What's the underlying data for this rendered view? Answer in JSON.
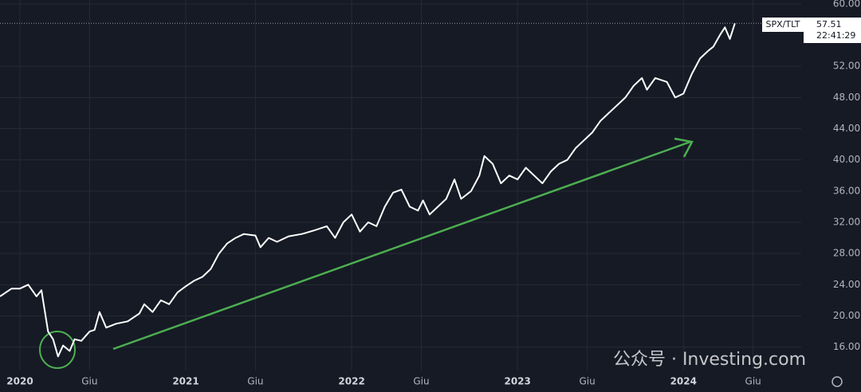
{
  "chart_data": {
    "type": "line",
    "symbol": "SPX/TLT",
    "last_price": 57.51,
    "time": "22:41:29",
    "watermark": "公众号 · Investing.com",
    "grid": true,
    "background": "#161a25",
    "xlim": [
      2019.88,
      2024.71
    ],
    "ylim": [
      13.0,
      60.5
    ],
    "xticks": [
      {
        "value": 2020,
        "label": "2020"
      },
      {
        "value": 2020.42,
        "label": "Giu"
      },
      {
        "value": 2021,
        "label": "2021"
      },
      {
        "value": 2021.42,
        "label": "Giu"
      },
      {
        "value": 2022,
        "label": "2022"
      },
      {
        "value": 2022.42,
        "label": "Giu"
      },
      {
        "value": 2023,
        "label": "2023"
      },
      {
        "value": 2023.42,
        "label": "Giu"
      },
      {
        "value": 2024,
        "label": "2024"
      },
      {
        "value": 2024.42,
        "label": "Giu"
      }
    ],
    "yticks": [
      {
        "value": 16,
        "label": "16.00"
      },
      {
        "value": 20,
        "label": "20.00"
      },
      {
        "value": 24,
        "label": "24.00"
      },
      {
        "value": 28,
        "label": "28.00"
      },
      {
        "value": 32,
        "label": "32.00"
      },
      {
        "value": 36,
        "label": "36.00"
      },
      {
        "value": 40,
        "label": "40.00"
      },
      {
        "value": 44,
        "label": "44.00"
      },
      {
        "value": 48,
        "label": "48.00"
      },
      {
        "value": 52,
        "label": "52.00"
      },
      {
        "value": 60,
        "label": "60.00"
      }
    ],
    "series": [
      {
        "name": "SPX/TLT",
        "color": "#ffffff",
        "x": [
          2019.88,
          2019.95,
          2020.0,
          2020.05,
          2020.1,
          2020.13,
          2020.17,
          2020.2,
          2020.23,
          2020.26,
          2020.3,
          2020.33,
          2020.37,
          2020.42,
          2020.45,
          2020.48,
          2020.52,
          2020.58,
          2020.65,
          2020.72,
          2020.75,
          2020.8,
          2020.85,
          2020.9,
          2020.95,
          2021.0,
          2021.05,
          2021.1,
          2021.15,
          2021.2,
          2021.25,
          2021.3,
          2021.35,
          2021.42,
          2021.45,
          2021.5,
          2021.55,
          2021.62,
          2021.7,
          2021.78,
          2021.85,
          2021.9,
          2021.95,
          2022.0,
          2022.05,
          2022.1,
          2022.15,
          2022.2,
          2022.25,
          2022.3,
          2022.35,
          2022.4,
          2022.43,
          2022.47,
          2022.52,
          2022.57,
          2022.62,
          2022.66,
          2022.72,
          2022.77,
          2022.8,
          2022.85,
          2022.9,
          2022.95,
          2023.0,
          2023.05,
          2023.1,
          2023.15,
          2023.2,
          2023.25,
          2023.3,
          2023.35,
          2023.4,
          2023.45,
          2023.5,
          2023.55,
          2023.6,
          2023.65,
          2023.7,
          2023.75,
          2023.78,
          2023.83,
          2023.9,
          2023.95,
          2024.0,
          2024.05,
          2024.1,
          2024.15,
          2024.18,
          2024.22,
          2024.25,
          2024.28,
          2024.31
        ],
        "values": [
          22.5,
          23.5,
          23.5,
          24.0,
          22.5,
          23.3,
          18.0,
          17.0,
          14.8,
          16.2,
          15.5,
          17.0,
          16.8,
          18.0,
          18.2,
          20.5,
          18.5,
          19.0,
          19.3,
          20.3,
          21.5,
          20.5,
          22.0,
          21.5,
          23.0,
          23.8,
          24.5,
          25.0,
          26.0,
          28.0,
          29.3,
          30.0,
          30.5,
          30.3,
          28.8,
          30.0,
          29.5,
          30.2,
          30.5,
          31.0,
          31.5,
          30.0,
          32.0,
          33.0,
          30.8,
          32.0,
          31.5,
          34.0,
          35.8,
          36.2,
          34.0,
          33.5,
          34.8,
          33.0,
          34.0,
          35.0,
          37.5,
          35.0,
          36.0,
          38.0,
          40.5,
          39.5,
          37.0,
          38.0,
          37.5,
          39.0,
          38.0,
          37.0,
          38.5,
          39.5,
          40.0,
          41.5,
          42.5,
          43.5,
          45.0,
          46.0,
          47.0,
          48.0,
          49.5,
          50.5,
          49.0,
          50.5,
          50.0,
          48.0,
          48.5,
          51.0,
          53.0,
          54.0,
          54.5,
          56.0,
          57.0,
          55.5,
          57.51
        ]
      }
    ]
  }
}
